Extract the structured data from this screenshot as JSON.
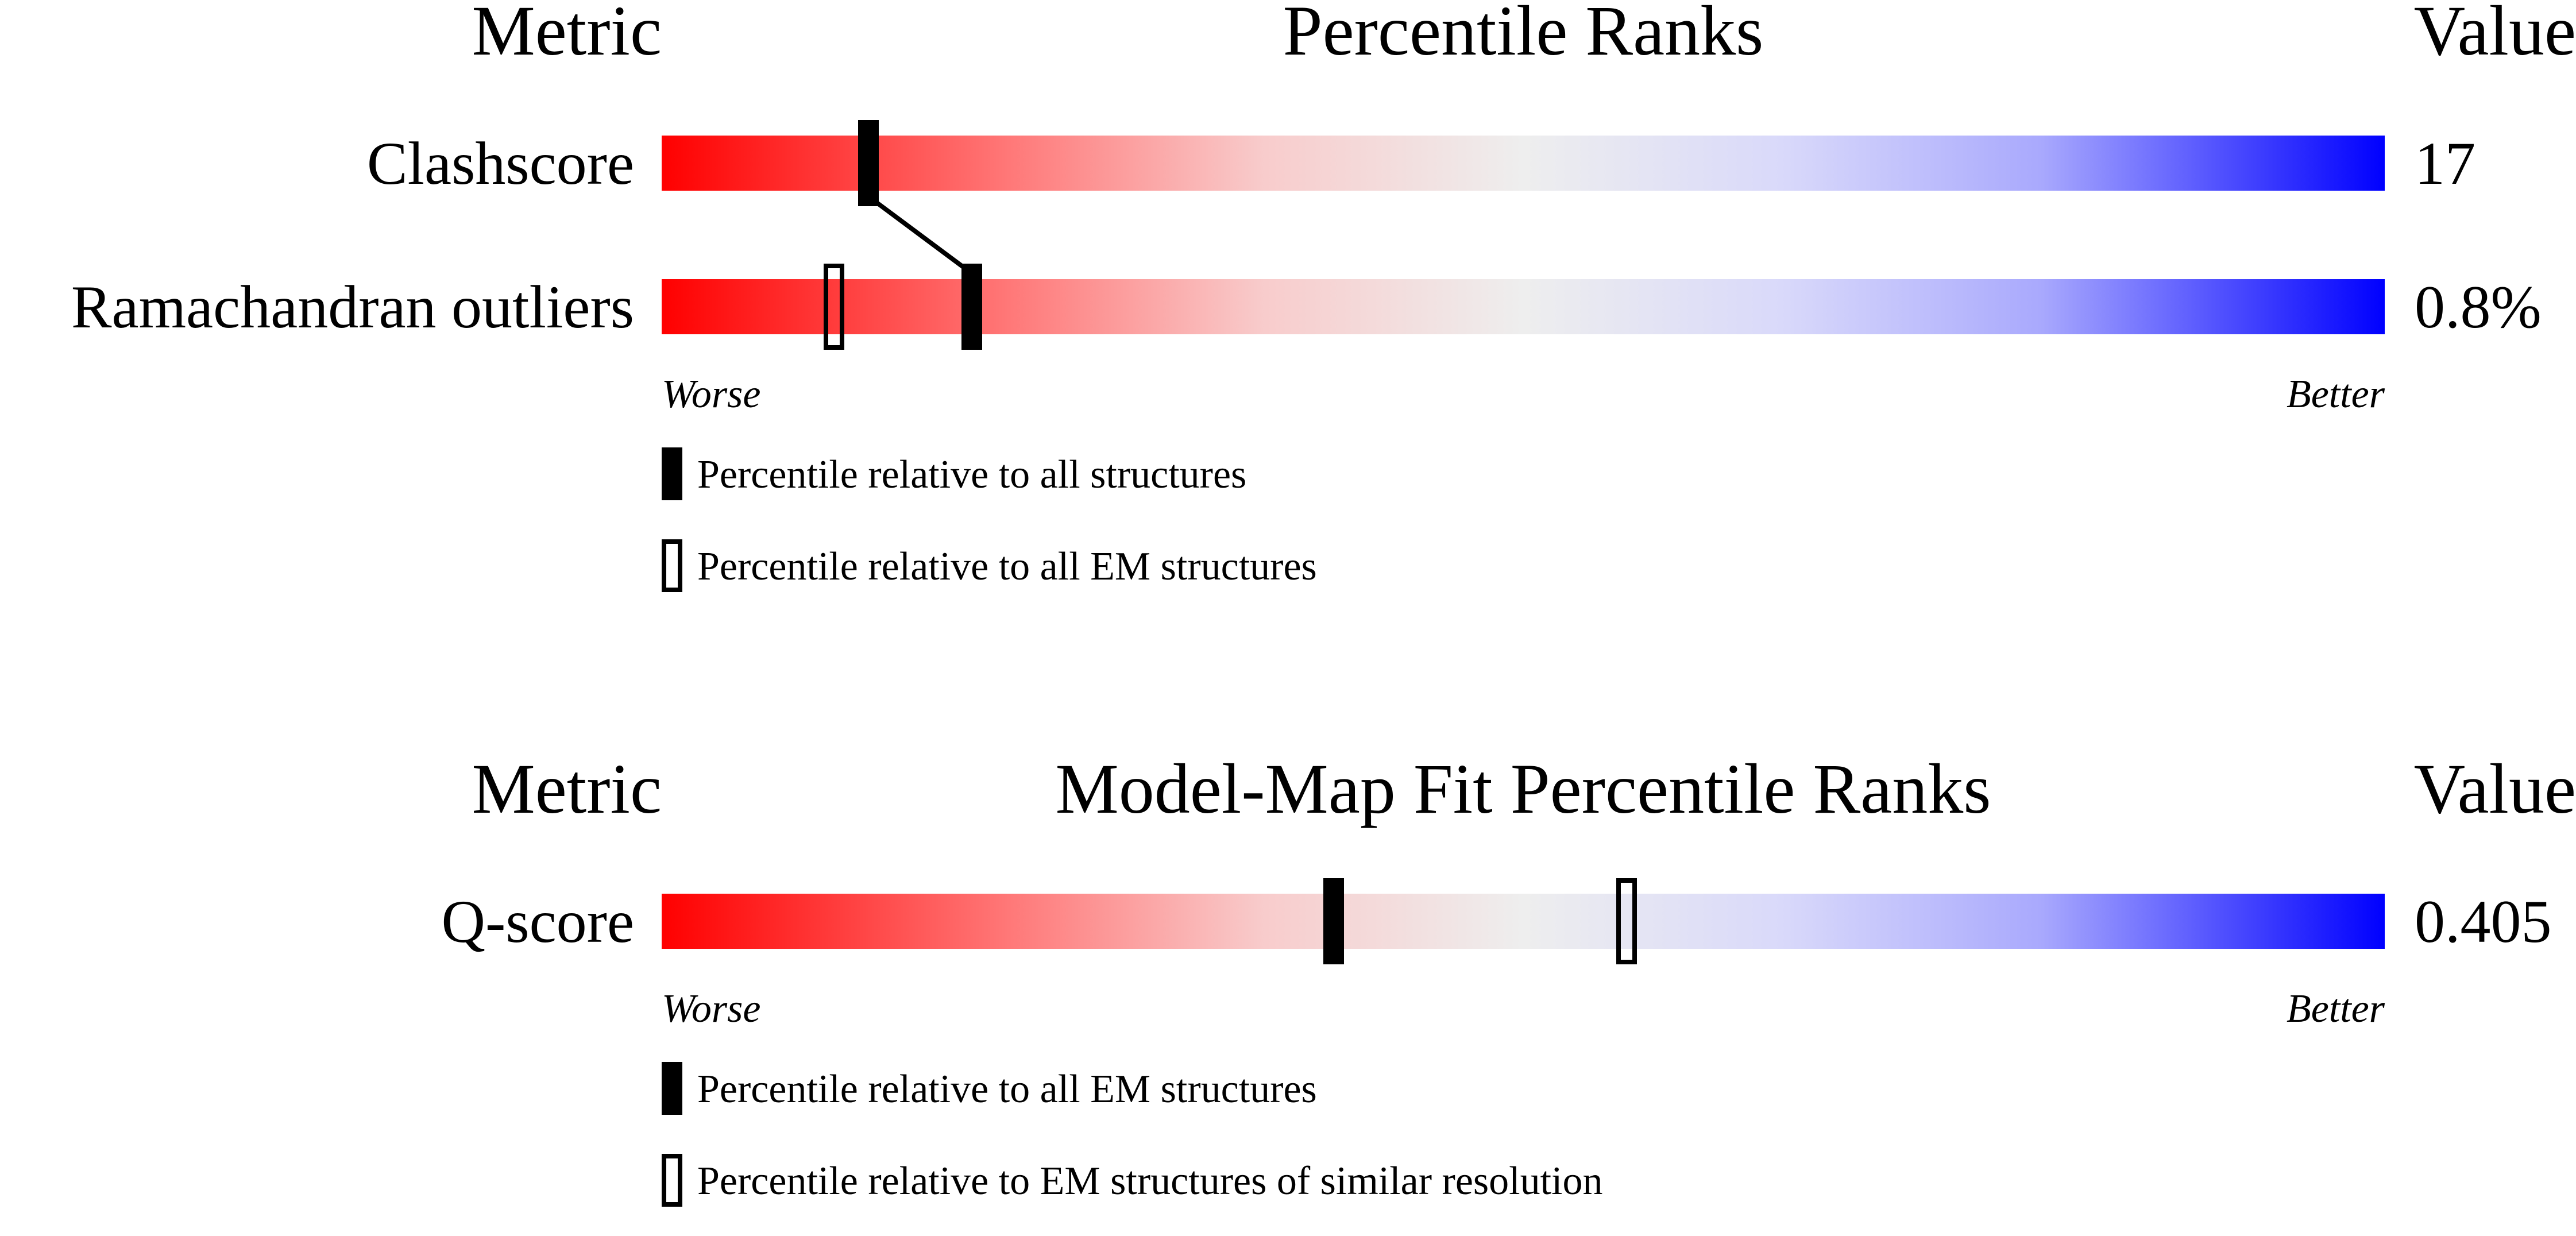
{
  "chart_data": [
    {
      "type": "percentile-slider",
      "title": "Percentile Ranks",
      "header_left": "Metric",
      "header_right": "Value",
      "scale_range": [
        0,
        100
      ],
      "worse_label": "Worse",
      "better_label": "Better",
      "gradient_colors": [
        "#ff0000",
        "#eeeeee",
        "#0000ff"
      ],
      "metrics": [
        {
          "name": "Clashscore",
          "value": "17",
          "percentile_filled": 12,
          "percentile_open": 12
        },
        {
          "name": "Ramachandran outliers",
          "value": "0.8%",
          "percentile_filled": 18,
          "percentile_open": 10
        }
      ],
      "legend": [
        {
          "marker": "filled",
          "label": "Percentile relative to all structures"
        },
        {
          "marker": "open",
          "label": "Percentile relative to all EM structures"
        }
      ]
    },
    {
      "type": "percentile-slider",
      "title": "Model-Map Fit Percentile Ranks",
      "header_left": "Metric",
      "header_right": "Value",
      "scale_range": [
        0,
        100
      ],
      "worse_label": "Worse",
      "better_label": "Better",
      "gradient_colors": [
        "#ff0000",
        "#eeeeee",
        "#0000ff"
      ],
      "metrics": [
        {
          "name": "Q-score",
          "value": "0.405",
          "percentile_filled": 39,
          "percentile_open": 56
        }
      ],
      "legend": [
        {
          "marker": "filled",
          "label": "Percentile relative to all EM structures"
        },
        {
          "marker": "open",
          "label": "Percentile relative to EM structures of similar resolution"
        }
      ]
    }
  ]
}
